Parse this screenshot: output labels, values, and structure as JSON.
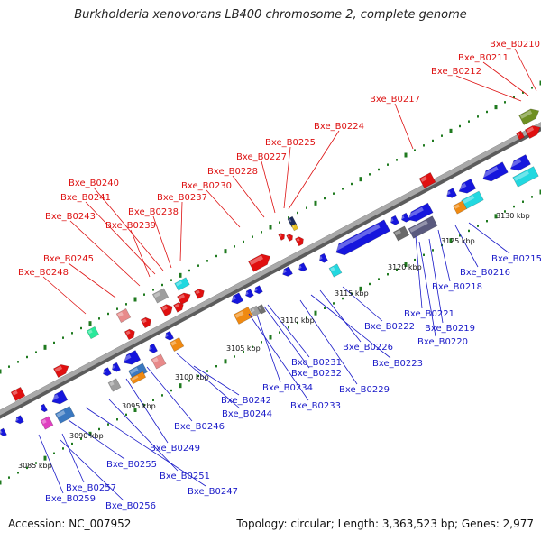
{
  "title": "Burkholderia xenovorans LB400 chromosome 2, complete genome",
  "accession": "Accession: NC_007952",
  "summary": "Topology: circular; Length: 3,363,523 bp; Genes: 2,977",
  "colors": {
    "top_strand_label": "#dd1111",
    "bottom_strand_label": "#1a1ac8",
    "backbone": "#8a8a8a",
    "dots": "#1f7a1f"
  },
  "ticks": [
    "3085 kbp",
    "3090 kbp",
    "3095 kbp",
    "3100 kbp",
    "3105 kbp",
    "3110 kbp",
    "3115 kbp",
    "3120 kbp",
    "3125 kbp",
    "3130 kbp"
  ],
  "top_labels": [
    "Bxe_B0210",
    "Bxe_B0211",
    "Bxe_B0212",
    "Bxe_B0217",
    "Bxe_B0224",
    "Bxe_B0225",
    "Bxe_B0227",
    "Bxe_B0228",
    "Bxe_B0230",
    "Bxe_B0240",
    "Bxe_B0241",
    "Bxe_B0237",
    "Bxe_B0238",
    "Bxe_B0243",
    "Bxe_B0239",
    "Bxe_B0245",
    "Bxe_B0248"
  ],
  "bottom_labels": [
    "Bxe_B0215",
    "Bxe_B0216",
    "Bxe_B0218",
    "Bxe_B0221",
    "Bxe_B0219",
    "Bxe_B0220",
    "Bxe_B0222",
    "Bxe_B0226",
    "Bxe_B0223",
    "Bxe_B0231",
    "Bxe_B0232",
    "Bxe_B0229",
    "Bxe_B0234",
    "Bxe_B0233",
    "Bxe_B0242",
    "Bxe_B0244",
    "Bxe_B0246",
    "Bxe_B0249",
    "Bxe_B0255",
    "Bxe_B0251",
    "Bxe_B0257",
    "Bxe_B0247",
    "Bxe_B0259",
    "Bxe_B0256"
  ]
}
